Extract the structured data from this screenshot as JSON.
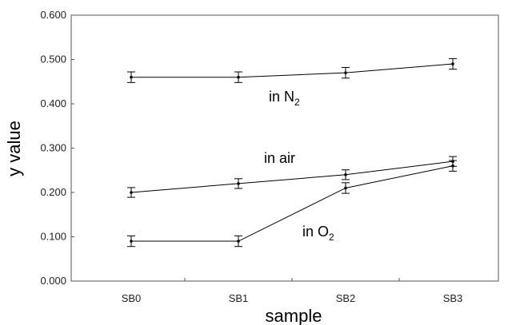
{
  "chart_data": {
    "type": "line",
    "xlabel": "sample",
    "ylabel": "y value",
    "categories": [
      "SB0",
      "SB1",
      "SB2",
      "SB3"
    ],
    "ylim": [
      0,
      0.6
    ],
    "yticks": [
      "0.000",
      "0.100",
      "0.200",
      "0.300",
      "0.400",
      "0.500",
      "0.600"
    ],
    "grid": false,
    "series": [
      {
        "name": "in N",
        "subscript": "2",
        "values": [
          0.46,
          0.46,
          0.47,
          0.49
        ],
        "error": [
          0.012,
          0.012,
          0.012,
          0.012
        ]
      },
      {
        "name": "in air",
        "subscript": "",
        "values": [
          0.2,
          0.22,
          0.24,
          0.27
        ],
        "error": [
          0.011,
          0.011,
          0.011,
          0.011
        ]
      },
      {
        "name": "in O",
        "subscript": "2",
        "values": [
          0.09,
          0.09,
          0.21,
          0.26
        ],
        "error": [
          0.012,
          0.012,
          0.012,
          0.012
        ]
      }
    ],
    "colors": {
      "line": "#000000",
      "axis": "#555555"
    }
  }
}
